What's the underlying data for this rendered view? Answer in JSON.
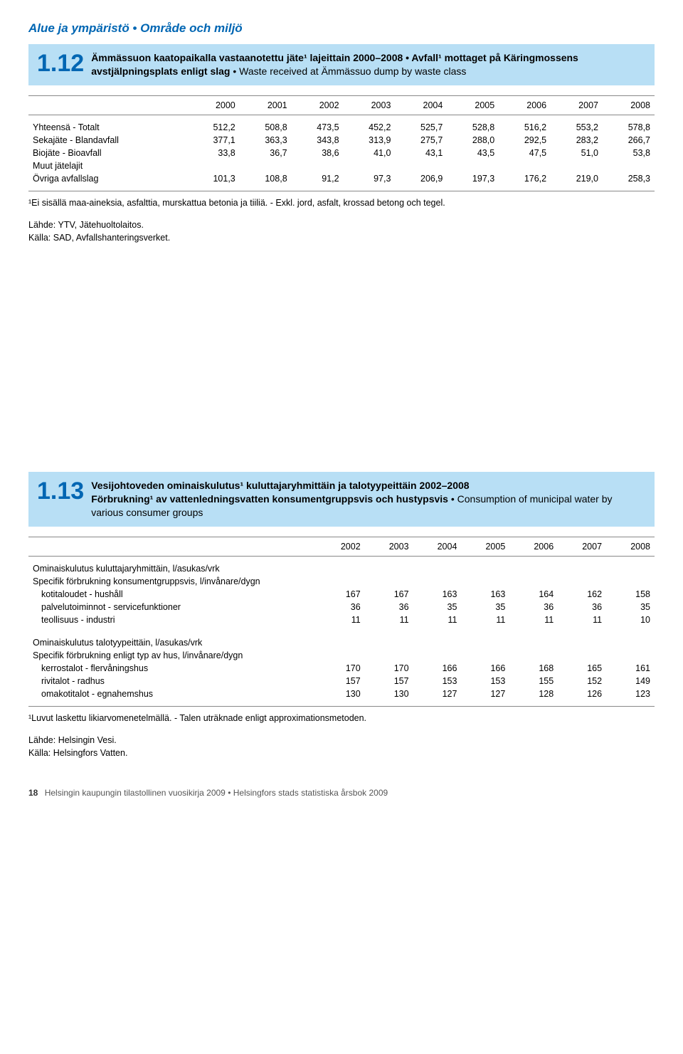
{
  "section_header": "Alue ja ympäristö • Område och miljö",
  "t112": {
    "number": "1.12",
    "title_html": "<b>Ämmässuon kaatopaikalla vastaanotettu jäte¹ lajeittain 2000–2008 • Avfall¹ mottaget på Käringmossens avstjälpningsplats enligt slag</b> • Waste received at Ämmässuo dump by waste class",
    "years": [
      "2000",
      "2001",
      "2002",
      "2003",
      "2004",
      "2005",
      "2006",
      "2007",
      "2008"
    ],
    "rows": [
      {
        "label": "Yhteensä - Totalt",
        "vals": [
          "512,2",
          "508,8",
          "473,5",
          "452,2",
          "525,7",
          "528,8",
          "516,2",
          "553,2",
          "578,8"
        ]
      },
      {
        "label": "Sekajäte - Blandavfall",
        "vals": [
          "377,1",
          "363,3",
          "343,8",
          "313,9",
          "275,7",
          "288,0",
          "292,5",
          "283,2",
          "266,7"
        ]
      },
      {
        "label": "Biojäte - Bioavfall",
        "vals": [
          "33,8",
          "36,7",
          "38,6",
          "41,0",
          "43,1",
          "43,5",
          "47,5",
          "51,0",
          "53,8"
        ]
      },
      {
        "label": "Muut jätelajit",
        "vals": [
          "",
          "",
          "",
          "",
          "",
          "",
          "",
          "",
          ""
        ]
      },
      {
        "label": "Övriga avfallslag",
        "vals": [
          "101,3",
          "108,8",
          "91,2",
          "97,3",
          "206,9",
          "197,3",
          "176,2",
          "219,0",
          "258,3"
        ]
      }
    ],
    "footnote": "¹Ei sisällä maa-aineksia, asfalttia, murskattua betonia ja tiiliä. - Exkl. jord, asfalt, krossad betong och tegel.",
    "source1": "Lähde: YTV, Jätehuoltolaitos.",
    "source2": "Källa: SAD, Avfallshanteringsverket."
  },
  "t113": {
    "number": "1.13",
    "title_html": "<b>Vesijohtoveden ominaiskulutus¹ kuluttajaryhmittäin ja talotyypeittäin 2002–2008</b><br><b>Förbrukning¹ av vattenledningsvatten konsumentgruppsvis och hustypsvis</b> • Consumption of municipal water by various consumer groups",
    "years": [
      "2002",
      "2003",
      "2004",
      "2005",
      "2006",
      "2007",
      "2008"
    ],
    "group1_h1": "Ominaiskulutus kuluttajaryhmittäin, l/asukas/vrk",
    "group1_h2": "Specifik förbrukning konsumentgruppsvis, l/invånare/dygn",
    "group1_rows": [
      {
        "label": "kotitaloudet - hushåll",
        "vals": [
          "167",
          "167",
          "163",
          "163",
          "164",
          "162",
          "158"
        ]
      },
      {
        "label": "palvelutoiminnot - servicefunktioner",
        "vals": [
          "36",
          "36",
          "35",
          "35",
          "36",
          "36",
          "35"
        ]
      },
      {
        "label": "teollisuus - industri",
        "vals": [
          "11",
          "11",
          "11",
          "11",
          "11",
          "11",
          "10"
        ]
      }
    ],
    "group2_h1": "Ominaiskulutus talotyypeittäin, l/asukas/vrk",
    "group2_h2": "Specifik förbrukning enligt typ av hus, l/invånare/dygn",
    "group2_rows": [
      {
        "label": "kerrostalot - flervåningshus",
        "vals": [
          "170",
          "170",
          "166",
          "166",
          "168",
          "165",
          "161"
        ]
      },
      {
        "label": "rivitalot - radhus",
        "vals": [
          "157",
          "157",
          "153",
          "153",
          "155",
          "152",
          "149"
        ]
      },
      {
        "label": "omakotitalot - egnahemshus",
        "vals": [
          "130",
          "130",
          "127",
          "127",
          "128",
          "126",
          "123"
        ]
      }
    ],
    "footnote": "¹Luvut laskettu likiarvomenetelmällä. - Talen uträknade enligt approximationsmetoden.",
    "source1": "Lähde: Helsingin Vesi.",
    "source2": "Källa: Helsingfors Vatten."
  },
  "footer": {
    "page": "18",
    "text": "Helsingin kaupungin tilastollinen vuosikirja 2009 • Helsingfors stads statistiska årsbok 2009"
  }
}
